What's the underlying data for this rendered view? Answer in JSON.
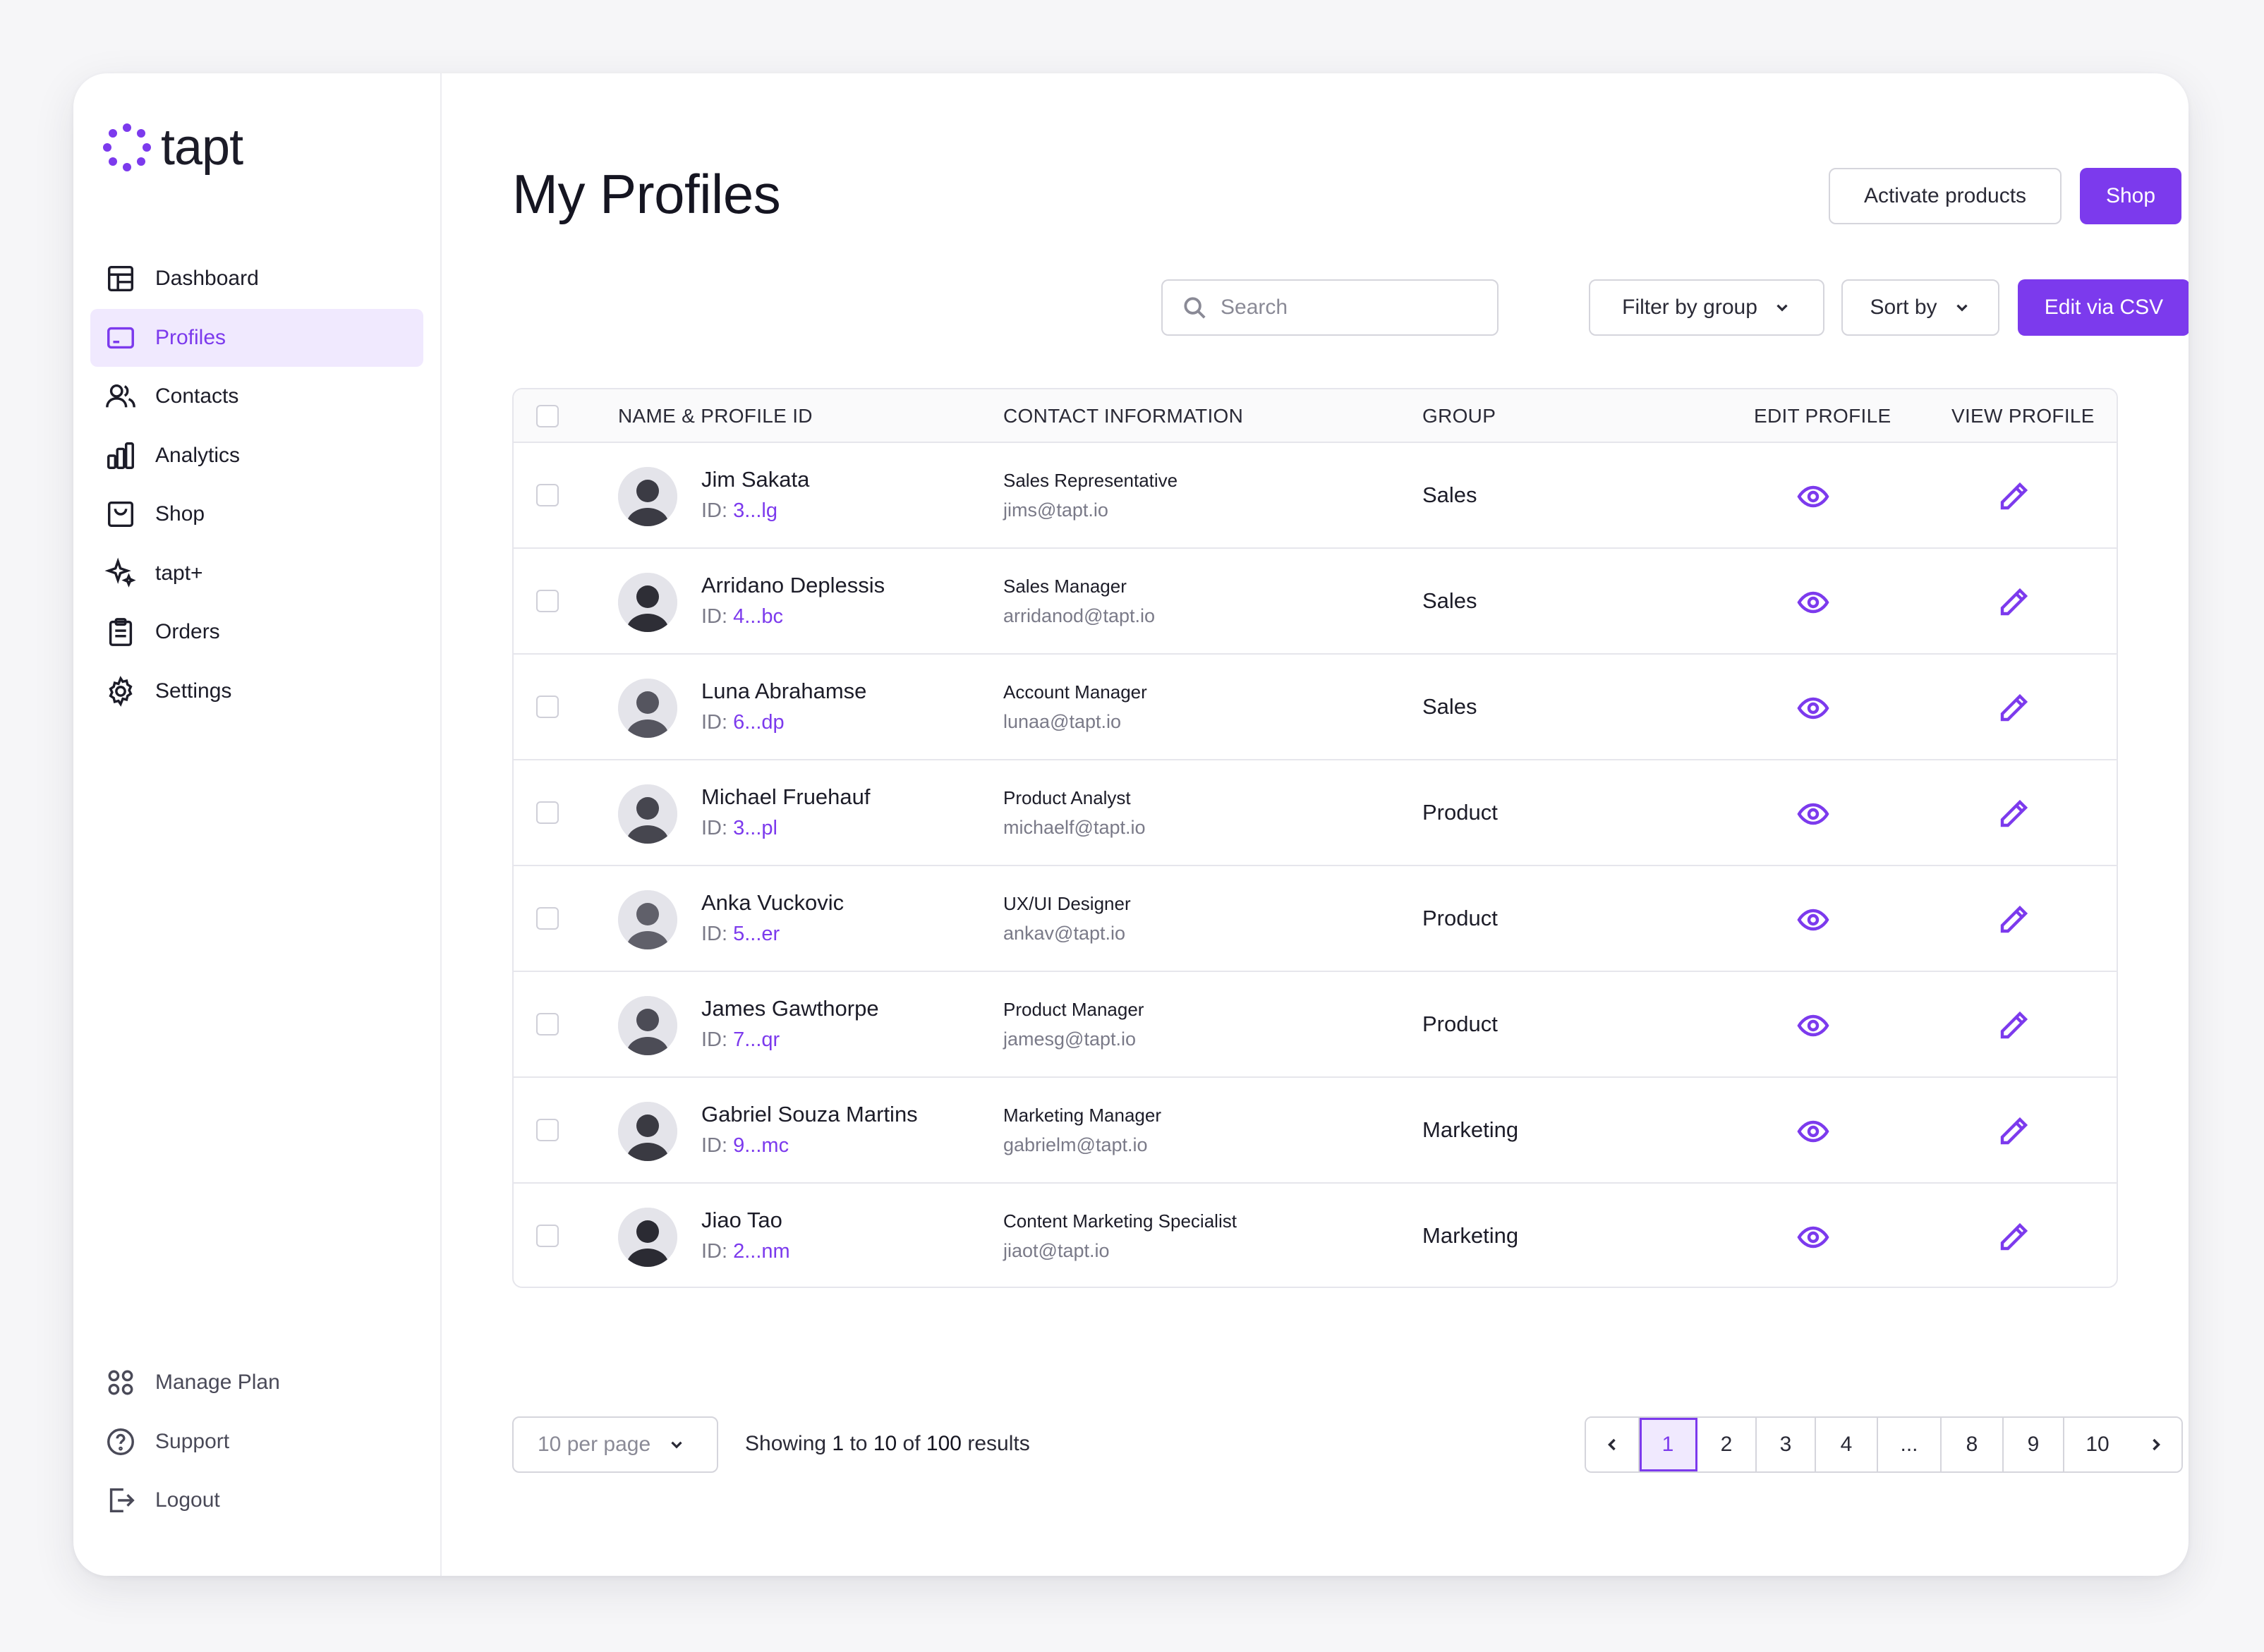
{
  "brand": {
    "name": "tapt",
    "accent": "#7c3aed"
  },
  "sidebar": {
    "items": [
      {
        "label": "Dashboard",
        "icon": "dashboard-icon"
      },
      {
        "label": "Profiles",
        "icon": "profile-card-icon",
        "active": true
      },
      {
        "label": "Contacts",
        "icon": "contacts-icon"
      },
      {
        "label": "Analytics",
        "icon": "analytics-icon"
      },
      {
        "label": "Shop",
        "icon": "shop-bag-icon"
      },
      {
        "label": "tapt+",
        "icon": "sparkle-icon"
      },
      {
        "label": "Orders",
        "icon": "clipboard-icon"
      },
      {
        "label": "Settings",
        "icon": "gear-icon"
      }
    ],
    "bottom": [
      {
        "label": "Manage Plan",
        "icon": "grid-icon"
      },
      {
        "label": "Support",
        "icon": "help-icon"
      },
      {
        "label": "Logout",
        "icon": "logout-icon"
      }
    ]
  },
  "header": {
    "title": "My Profiles",
    "activate_label": "Activate products",
    "shop_label": "Shop"
  },
  "toolbar": {
    "search_placeholder": "Search",
    "filter_label": "Filter by group",
    "sort_label": "Sort by",
    "csv_label": "Edit via CSV"
  },
  "table": {
    "columns": {
      "name": "NAME & PROFILE ID",
      "contact": "CONTACT INFORMATION",
      "group": "GROUP",
      "edit": "EDIT PROFILE",
      "view": "VIEW PROFILE"
    },
    "id_prefix": "ID: ",
    "rows": [
      {
        "name": "Jim Sakata",
        "id": "3...lg",
        "role": "Sales Representative",
        "email": "jims@tapt.io",
        "group": "Sales"
      },
      {
        "name": "Arridano Deplessis",
        "id": "4...bc",
        "role": "Sales Manager",
        "email": "arridanod@tapt.io",
        "group": "Sales"
      },
      {
        "name": "Luna Abrahamse",
        "id": "6...dp",
        "role": "Account Manager",
        "email": "lunaa@tapt.io",
        "group": "Sales"
      },
      {
        "name": "Michael Fruehauf",
        "id": "3...pl",
        "role": "Product Analyst",
        "email": "michaelf@tapt.io",
        "group": "Product"
      },
      {
        "name": "Anka Vuckovic",
        "id": "5...er",
        "role": "UX/UI Designer",
        "email": "ankav@tapt.io",
        "group": "Product"
      },
      {
        "name": "James Gawthorpe",
        "id": "7...qr",
        "role": "Product Manager",
        "email": "jamesg@tapt.io",
        "group": "Product"
      },
      {
        "name": "Gabriel Souza Martins",
        "id": "9...mc",
        "role": "Marketing Manager",
        "email": "gabrielm@tapt.io",
        "group": "Marketing"
      },
      {
        "name": "Jiao Tao",
        "id": "2...nm",
        "role": "Content Marketing Specialist",
        "email": "jiaot@tapt.io",
        "group": "Marketing"
      }
    ]
  },
  "footer": {
    "per_page": "10 per page",
    "showing_prefix": "Showing",
    "from": "1",
    "to_word": "to",
    "to": "10",
    "of_word": "of",
    "total": "100",
    "results_word": "results"
  },
  "pagination": {
    "pages": [
      "1",
      "2",
      "3",
      "4",
      "...",
      "8",
      "9",
      "10"
    ],
    "current": "1"
  }
}
